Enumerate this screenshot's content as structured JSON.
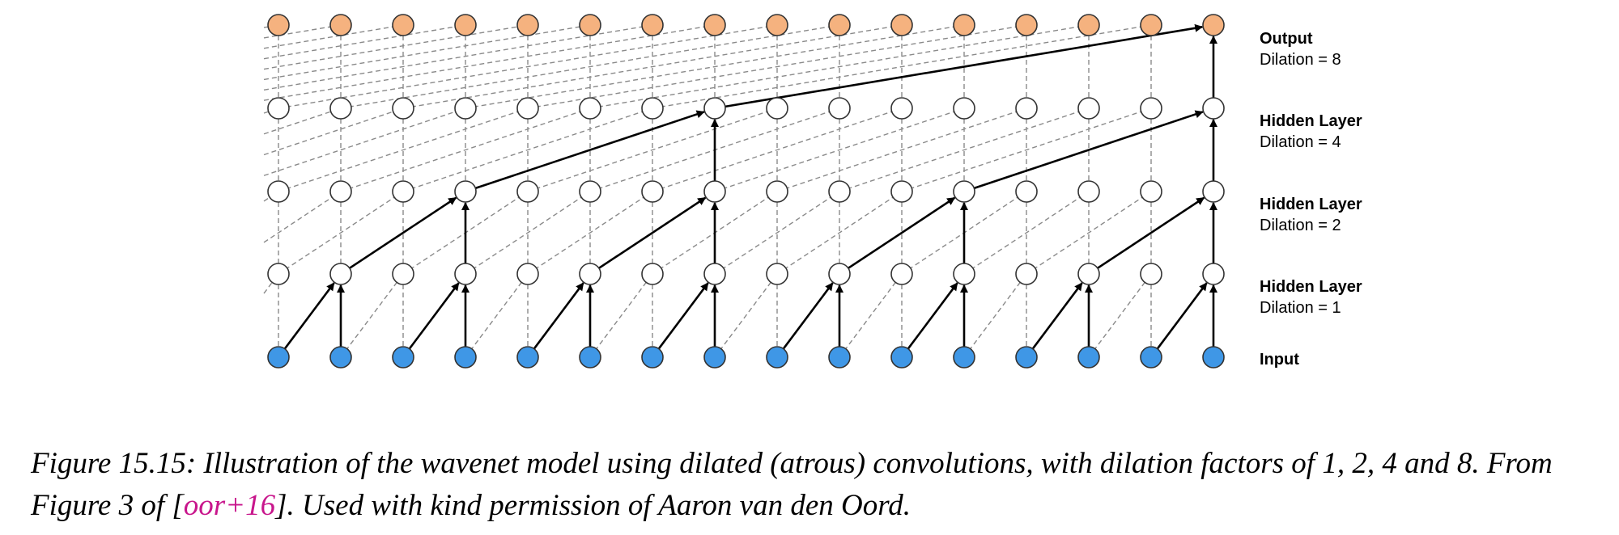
{
  "diagram": {
    "columns": 16,
    "layers": [
      {
        "id": "output",
        "title": "Output",
        "subtitle": "Dilation = 8",
        "node_fill": "#f5b27f"
      },
      {
        "id": "hidden3",
        "title": "Hidden Layer",
        "subtitle": "Dilation = 4",
        "node_fill": "#ffffff"
      },
      {
        "id": "hidden2",
        "title": "Hidden Layer",
        "subtitle": "Dilation = 2",
        "node_fill": "#ffffff"
      },
      {
        "id": "hidden1",
        "title": "Hidden Layer",
        "subtitle": "Dilation = 1",
        "node_fill": "#ffffff"
      },
      {
        "id": "input",
        "title": "Input",
        "subtitle": "",
        "node_fill": "#3f97e6"
      }
    ],
    "dilations": [
      1,
      2,
      4,
      8
    ],
    "colors": {
      "edge": "#000000",
      "dashed_edge": "#8a8a8a",
      "node_stroke": "#333333"
    }
  },
  "caption": {
    "text_before": "Figure 15.15: Illustration of the wavenet model using dilated (atrous) convolutions, with dilation factors of 1, 2, 4 and 8. From Figure 3 of [",
    "citation": "oor+16",
    "text_after": "]. Used with kind permission of Aaron van den Oord."
  }
}
